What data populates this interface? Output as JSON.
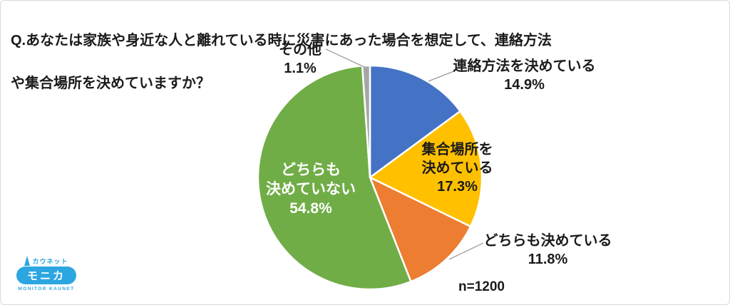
{
  "page": {
    "title_line1": "Q.あなたは家族や身近な人と離れている時に災害にあった場合を想定して、連絡方法",
    "title_line2": "や集合場所を決めていますか？"
  },
  "logo": {
    "brand_top": "カウネット",
    "brand_main": "モニカ",
    "brand_sub": "MONITOR KAUNET",
    "color": "#2ca6e0"
  },
  "chart_data": {
    "type": "pie",
    "title": "Q.あなたは家族や身近な人と離れている時に災害にあった場合を想定して、連絡方法や集合場所を決めていますか？",
    "sample_size": "n=1200",
    "start_angle_deg": 0,
    "direction": "clockwise",
    "legend_position": "none",
    "segments": [
      {
        "label": "連絡方法を決めている",
        "value": 14.9,
        "color": "#4472C4",
        "label_lines": "連絡方法を決めている\n14.9%",
        "label_color": "#1b1b1b"
      },
      {
        "label": "集合場所を決めている",
        "value": 17.3,
        "color": "#FFC000",
        "label_lines": "集合場所を\n決めている\n17.3%",
        "label_color": "#1b1b1b"
      },
      {
        "label": "どちらも決めている",
        "value": 11.8,
        "color": "#ED7D31",
        "label_lines": "どちらも決めている\n11.8%",
        "label_color": "#1b1b1b"
      },
      {
        "label": "どちらも決めていない",
        "value": 54.8,
        "color": "#70AD47",
        "label_lines": "どちらも\n決めていない\n54.8%",
        "label_color": "#ffffff"
      },
      {
        "label": "その他",
        "value": 1.1,
        "color": "#A6A6A6",
        "label_lines": "その他\n1.1%",
        "label_color": "#1b1b1b"
      }
    ],
    "leader_line_color": "#A6A6A6"
  }
}
